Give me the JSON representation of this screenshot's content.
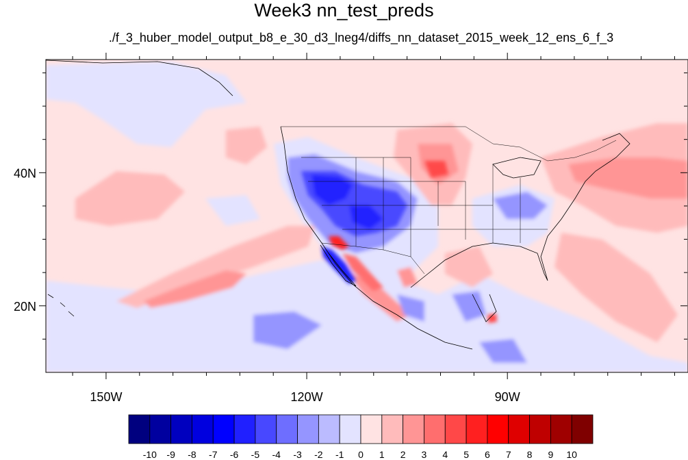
{
  "title": "Week3 nn_test_preds",
  "subtitle": "./f_3_huber_model_output_b8_e_30_d3_lneg4/diffs_nn_dataset_2015_week_12_ens_6_f_3",
  "map": {
    "projection": "cylindrical-equidistant",
    "lon_range": [
      -159,
      -63
    ],
    "lat_range": [
      10,
      57
    ],
    "x_ticks": [
      {
        "lon": -150,
        "label": "150W"
      },
      {
        "lon": -120,
        "label": "120W"
      },
      {
        "lon": -90,
        "label": "90W"
      }
    ],
    "y_ticks": [
      {
        "lat": 20,
        "label": "20N"
      },
      {
        "lat": 40,
        "label": "40N"
      }
    ]
  },
  "colorbar": {
    "levels": [
      "-10",
      "-9",
      "-8",
      "-7",
      "-6",
      "-5",
      "-4",
      "-3",
      "-2",
      "-1",
      "0",
      "1",
      "2",
      "3",
      "4",
      "5",
      "6",
      "7",
      "8",
      "9",
      "10"
    ],
    "colors": [
      "#00007f",
      "#00009f",
      "#0000bf",
      "#0000df",
      "#0000ff",
      "#2020ff",
      "#4848ff",
      "#6e6eff",
      "#9595ff",
      "#bbbbff",
      "#e3e3ff",
      "#ffe3e3",
      "#ffbbbb",
      "#ff9595",
      "#ff6e6e",
      "#ff4848",
      "#ff2020",
      "#ff0000",
      "#df0000",
      "#bf0000",
      "#9f0000",
      "#7f0000"
    ]
  }
}
